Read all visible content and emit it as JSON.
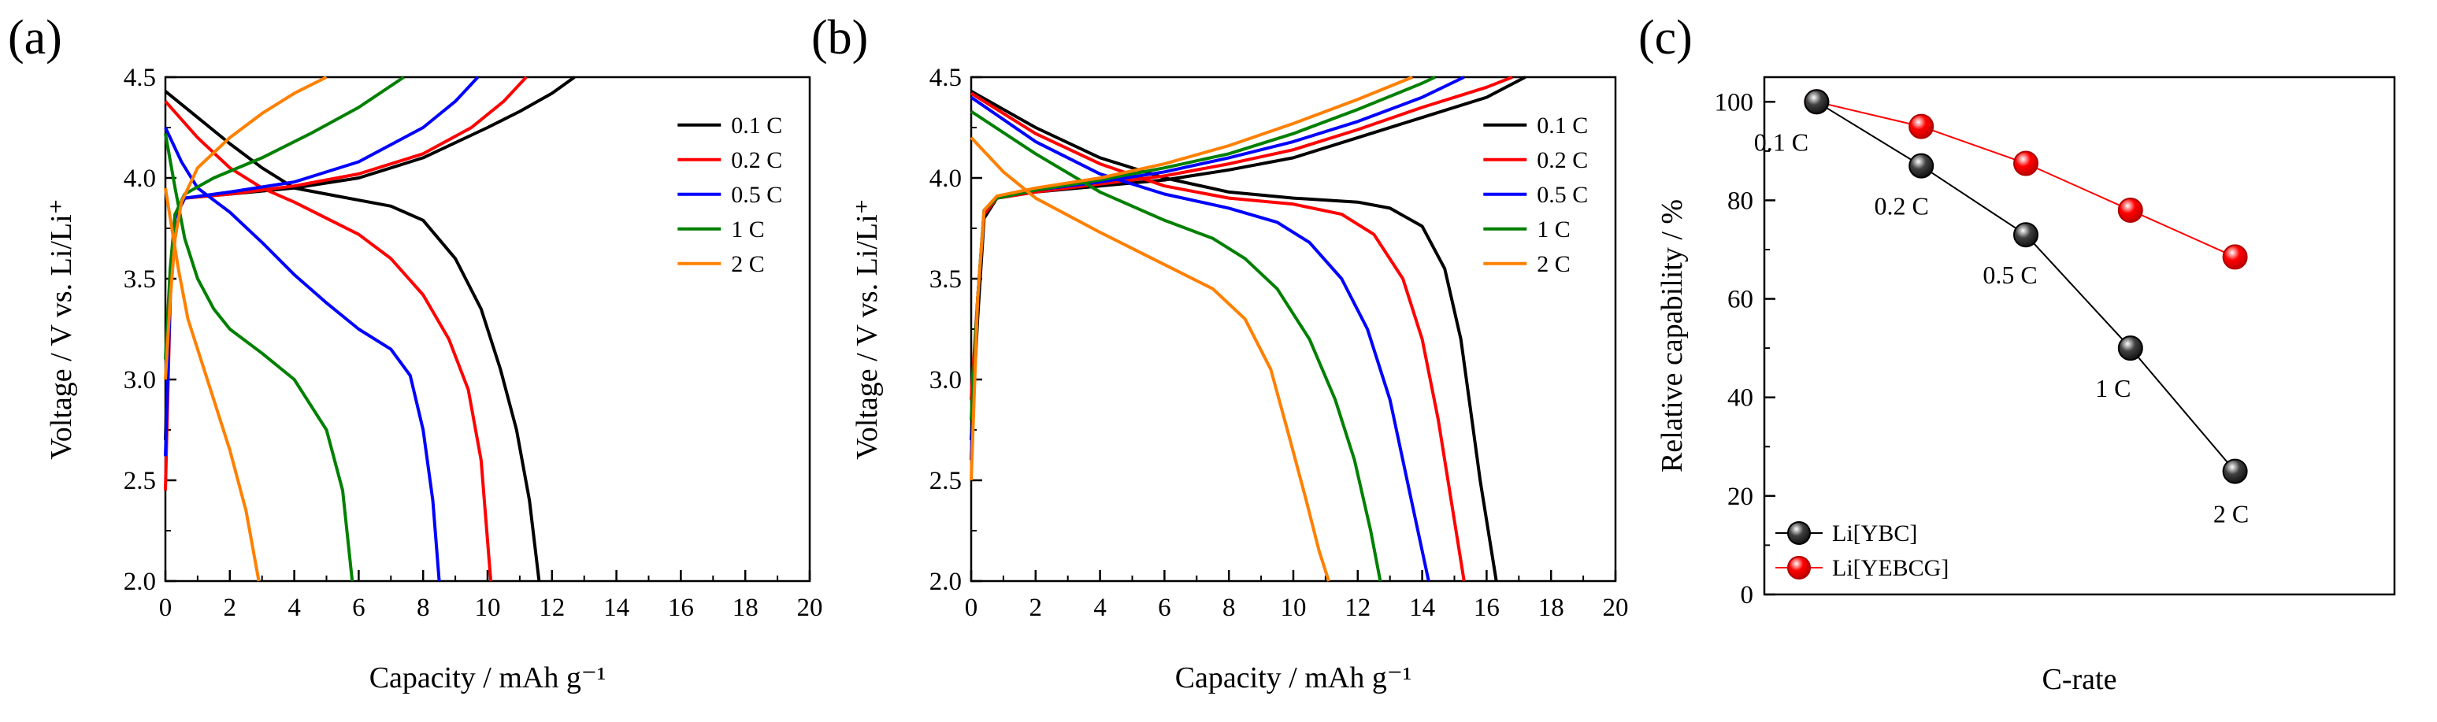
{
  "chart_data": [
    {
      "type": "line",
      "panel_label": "(a)",
      "xlabel": "Capacity / mAh g⁻¹",
      "ylabel": "Voltage / V vs. Li/Li⁺",
      "xlim": [
        0,
        20
      ],
      "ylim": [
        2.0,
        4.5
      ],
      "x_ticks": [
        "0",
        "2",
        "4",
        "6",
        "8",
        "10",
        "12",
        "14",
        "16",
        "18",
        "20"
      ],
      "y_ticks": [
        "2.0",
        "2.5",
        "3.0",
        "3.5",
        "4.0",
        "4.5"
      ],
      "legend_position": "right",
      "series": [
        {
          "name": "0.1 C",
          "color": "#000000",
          "charge": [
            [
              0,
              2.7
            ],
            [
              0.15,
              3.5
            ],
            [
              0.3,
              3.82
            ],
            [
              0.6,
              3.9
            ],
            [
              2,
              3.92
            ],
            [
              4,
              3.95
            ],
            [
              6,
              4.0
            ],
            [
              8,
              4.1
            ],
            [
              10,
              4.25
            ],
            [
              11,
              4.33
            ],
            [
              12,
              4.42
            ],
            [
              12.7,
              4.5
            ]
          ],
          "discharge": [
            [
              0,
              4.43
            ],
            [
              1,
              4.3
            ],
            [
              2,
              4.17
            ],
            [
              3,
              4.05
            ],
            [
              4,
              3.95
            ],
            [
              5,
              3.92
            ],
            [
              6,
              3.89
            ],
            [
              7,
              3.86
            ],
            [
              8,
              3.79
            ],
            [
              9,
              3.6
            ],
            [
              9.8,
              3.35
            ],
            [
              10.4,
              3.05
            ],
            [
              10.9,
              2.75
            ],
            [
              11.3,
              2.4
            ],
            [
              11.6,
              2.0
            ]
          ]
        },
        {
          "name": "0.2 C",
          "color": "#ff0000",
          "charge": [
            [
              0,
              2.45
            ],
            [
              0.15,
              3.4
            ],
            [
              0.3,
              3.82
            ],
            [
              0.6,
              3.9
            ],
            [
              2,
              3.92
            ],
            [
              4,
              3.96
            ],
            [
              6,
              4.02
            ],
            [
              8,
              4.12
            ],
            [
              9.5,
              4.25
            ],
            [
              10.5,
              4.38
            ],
            [
              11.2,
              4.5
            ]
          ],
          "discharge": [
            [
              0,
              4.38
            ],
            [
              1,
              4.2
            ],
            [
              2,
              4.05
            ],
            [
              3,
              3.95
            ],
            [
              4,
              3.88
            ],
            [
              5,
              3.8
            ],
            [
              6,
              3.72
            ],
            [
              7,
              3.6
            ],
            [
              8,
              3.42
            ],
            [
              8.8,
              3.2
            ],
            [
              9.4,
              2.95
            ],
            [
              9.8,
              2.6
            ],
            [
              10.1,
              2.0
            ]
          ]
        },
        {
          "name": "0.5 C",
          "color": "#0000ff",
          "charge": [
            [
              0,
              2.62
            ],
            [
              0.15,
              3.4
            ],
            [
              0.3,
              3.8
            ],
            [
              0.6,
              3.9
            ],
            [
              2,
              3.93
            ],
            [
              4,
              3.98
            ],
            [
              6,
              4.08
            ],
            [
              8,
              4.25
            ],
            [
              9,
              4.38
            ],
            [
              9.7,
              4.5
            ]
          ],
          "discharge": [
            [
              0,
              4.25
            ],
            [
              0.5,
              4.08
            ],
            [
              1,
              3.95
            ],
            [
              2,
              3.83
            ],
            [
              3,
              3.68
            ],
            [
              4,
              3.52
            ],
            [
              5,
              3.38
            ],
            [
              6,
              3.25
            ],
            [
              7,
              3.15
            ],
            [
              7.6,
              3.02
            ],
            [
              8,
              2.75
            ],
            [
              8.3,
              2.4
            ],
            [
              8.5,
              2.0
            ]
          ]
        },
        {
          "name": "1 C",
          "color": "#008000",
          "charge": [
            [
              0,
              3.1
            ],
            [
              0.15,
              3.55
            ],
            [
              0.3,
              3.82
            ],
            [
              0.6,
              3.92
            ],
            [
              1.5,
              4.0
            ],
            [
              3,
              4.1
            ],
            [
              4.5,
              4.22
            ],
            [
              6,
              4.35
            ],
            [
              7.4,
              4.5
            ]
          ],
          "discharge": [
            [
              0,
              4.22
            ],
            [
              0.3,
              3.95
            ],
            [
              0.6,
              3.7
            ],
            [
              1,
              3.5
            ],
            [
              1.5,
              3.35
            ],
            [
              2,
              3.25
            ],
            [
              3,
              3.13
            ],
            [
              4,
              3.0
            ],
            [
              5,
              2.75
            ],
            [
              5.5,
              2.45
            ],
            [
              5.8,
              2.0
            ]
          ]
        },
        {
          "name": "2 C",
          "color": "#ff8000",
          "charge": [
            [
              0,
              3.0
            ],
            [
              0.15,
              3.4
            ],
            [
              0.3,
              3.7
            ],
            [
              0.5,
              3.88
            ],
            [
              1,
              4.05
            ],
            [
              2,
              4.2
            ],
            [
              3,
              4.32
            ],
            [
              4,
              4.42
            ],
            [
              5,
              4.5
            ]
          ],
          "discharge": [
            [
              0,
              3.95
            ],
            [
              0.2,
              3.75
            ],
            [
              0.4,
              3.55
            ],
            [
              0.7,
              3.3
            ],
            [
              1.1,
              3.1
            ],
            [
              1.5,
              2.9
            ],
            [
              2,
              2.65
            ],
            [
              2.5,
              2.35
            ],
            [
              2.9,
              2.0
            ]
          ]
        }
      ]
    },
    {
      "type": "line",
      "panel_label": "(b)",
      "xlabel": "Capacity / mAh g⁻¹",
      "ylabel": "Voltage / V vs. Li/Li⁺",
      "xlim": [
        0,
        20
      ],
      "ylim": [
        2.0,
        4.5
      ],
      "x_ticks": [
        "0",
        "2",
        "4",
        "6",
        "8",
        "10",
        "12",
        "14",
        "16",
        "18",
        "20"
      ],
      "y_ticks": [
        "2.0",
        "2.5",
        "3.0",
        "3.5",
        "4.0",
        "4.5"
      ],
      "legend_position": "right",
      "series": [
        {
          "name": "0.1 C",
          "color": "#000000",
          "charge": [
            [
              0,
              2.7
            ],
            [
              0.2,
              3.3
            ],
            [
              0.4,
              3.8
            ],
            [
              0.8,
              3.9
            ],
            [
              2,
              3.93
            ],
            [
              4,
              3.96
            ],
            [
              6,
              3.99
            ],
            [
              8,
              4.04
            ],
            [
              10,
              4.1
            ],
            [
              12,
              4.2
            ],
            [
              14,
              4.3
            ],
            [
              16,
              4.4
            ],
            [
              17.2,
              4.5
            ]
          ],
          "discharge": [
            [
              0,
              4.43
            ],
            [
              2,
              4.25
            ],
            [
              4,
              4.1
            ],
            [
              6,
              4.0
            ],
            [
              8,
              3.93
            ],
            [
              10,
              3.9
            ],
            [
              12,
              3.88
            ],
            [
              13,
              3.85
            ],
            [
              14,
              3.76
            ],
            [
              14.7,
              3.55
            ],
            [
              15.2,
              3.2
            ],
            [
              15.5,
              2.85
            ],
            [
              15.8,
              2.5
            ],
            [
              16.1,
              2.2
            ],
            [
              16.3,
              2.0
            ]
          ]
        },
        {
          "name": "0.2 C",
          "color": "#ff0000",
          "charge": [
            [
              0,
              2.9
            ],
            [
              0.2,
              3.4
            ],
            [
              0.4,
              3.82
            ],
            [
              0.8,
              3.9
            ],
            [
              2,
              3.93
            ],
            [
              4,
              3.97
            ],
            [
              6,
              4.01
            ],
            [
              8,
              4.07
            ],
            [
              10,
              4.14
            ],
            [
              12,
              4.24
            ],
            [
              14,
              4.35
            ],
            [
              16,
              4.45
            ],
            [
              16.8,
              4.5
            ]
          ],
          "discharge": [
            [
              0,
              4.42
            ],
            [
              2,
              4.22
            ],
            [
              4,
              4.07
            ],
            [
              6,
              3.96
            ],
            [
              8,
              3.9
            ],
            [
              10,
              3.87
            ],
            [
              11.5,
              3.82
            ],
            [
              12.5,
              3.72
            ],
            [
              13.4,
              3.5
            ],
            [
              14,
              3.2
            ],
            [
              14.5,
              2.8
            ],
            [
              14.9,
              2.4
            ],
            [
              15.3,
              2.0
            ]
          ]
        },
        {
          "name": "0.5 C",
          "color": "#0000ff",
          "charge": [
            [
              0,
              2.6
            ],
            [
              0.2,
              3.4
            ],
            [
              0.4,
              3.84
            ],
            [
              0.8,
              3.9
            ],
            [
              2,
              3.94
            ],
            [
              4,
              3.98
            ],
            [
              6,
              4.03
            ],
            [
              8,
              4.1
            ],
            [
              10,
              4.18
            ],
            [
              12,
              4.28
            ],
            [
              14,
              4.4
            ],
            [
              15.3,
              4.5
            ]
          ],
          "discharge": [
            [
              0,
              4.4
            ],
            [
              2,
              4.18
            ],
            [
              4,
              4.02
            ],
            [
              6,
              3.92
            ],
            [
              8,
              3.85
            ],
            [
              9.5,
              3.78
            ],
            [
              10.5,
              3.68
            ],
            [
              11.5,
              3.5
            ],
            [
              12.3,
              3.25
            ],
            [
              13,
              2.9
            ],
            [
              13.6,
              2.45
            ],
            [
              14.2,
              2.0
            ]
          ]
        },
        {
          "name": "1 C",
          "color": "#008000",
          "charge": [
            [
              0,
              2.8
            ],
            [
              0.2,
              3.4
            ],
            [
              0.4,
              3.84
            ],
            [
              0.8,
              3.9
            ],
            [
              2,
              3.94
            ],
            [
              4,
              3.99
            ],
            [
              6,
              4.05
            ],
            [
              8,
              4.12
            ],
            [
              10,
              4.22
            ],
            [
              12,
              4.34
            ],
            [
              14,
              4.47
            ],
            [
              14.4,
              4.5
            ]
          ],
          "discharge": [
            [
              0,
              4.33
            ],
            [
              2,
              4.12
            ],
            [
              4,
              3.93
            ],
            [
              6,
              3.79
            ],
            [
              7.5,
              3.7
            ],
            [
              8.5,
              3.6
            ],
            [
              9.5,
              3.45
            ],
            [
              10.5,
              3.2
            ],
            [
              11.3,
              2.9
            ],
            [
              11.9,
              2.6
            ],
            [
              12.4,
              2.25
            ],
            [
              12.7,
              2.0
            ]
          ]
        },
        {
          "name": "2 C",
          "color": "#ff8000",
          "charge": [
            [
              0,
              2.5
            ],
            [
              0.2,
              3.4
            ],
            [
              0.4,
              3.84
            ],
            [
              0.8,
              3.91
            ],
            [
              2,
              3.95
            ],
            [
              4,
              4.0
            ],
            [
              6,
              4.07
            ],
            [
              8,
              4.16
            ],
            [
              10,
              4.27
            ],
            [
              12,
              4.39
            ],
            [
              13.7,
              4.5
            ]
          ],
          "discharge": [
            [
              0,
              4.2
            ],
            [
              1,
              4.03
            ],
            [
              2,
              3.9
            ],
            [
              4,
              3.73
            ],
            [
              6,
              3.57
            ],
            [
              7.5,
              3.45
            ],
            [
              8.5,
              3.3
            ],
            [
              9.3,
              3.05
            ],
            [
              9.9,
              2.7
            ],
            [
              10.4,
              2.4
            ],
            [
              10.8,
              2.15
            ],
            [
              11.1,
              2.0
            ]
          ]
        }
      ]
    },
    {
      "type": "line",
      "panel_label": "(c)",
      "xlabel": "C-rate",
      "ylabel": "Relative capability / %",
      "ylim": [
        0,
        105
      ],
      "y_ticks": [
        "0",
        "20",
        "40",
        "60",
        "80",
        "100"
      ],
      "categories": [
        "0.1 C",
        "0.2 C",
        "0.5 C",
        "1 C",
        "2 C"
      ],
      "legend_position": "bottom-left",
      "series": [
        {
          "name": "Li[YBC]",
          "color": "#404040",
          "values": [
            100,
            87,
            73,
            50,
            25
          ]
        },
        {
          "name": "Li[YEBCG]",
          "color": "#ff0000",
          "values": [
            100,
            95,
            87.5,
            78,
            68.5
          ]
        }
      ]
    }
  ]
}
